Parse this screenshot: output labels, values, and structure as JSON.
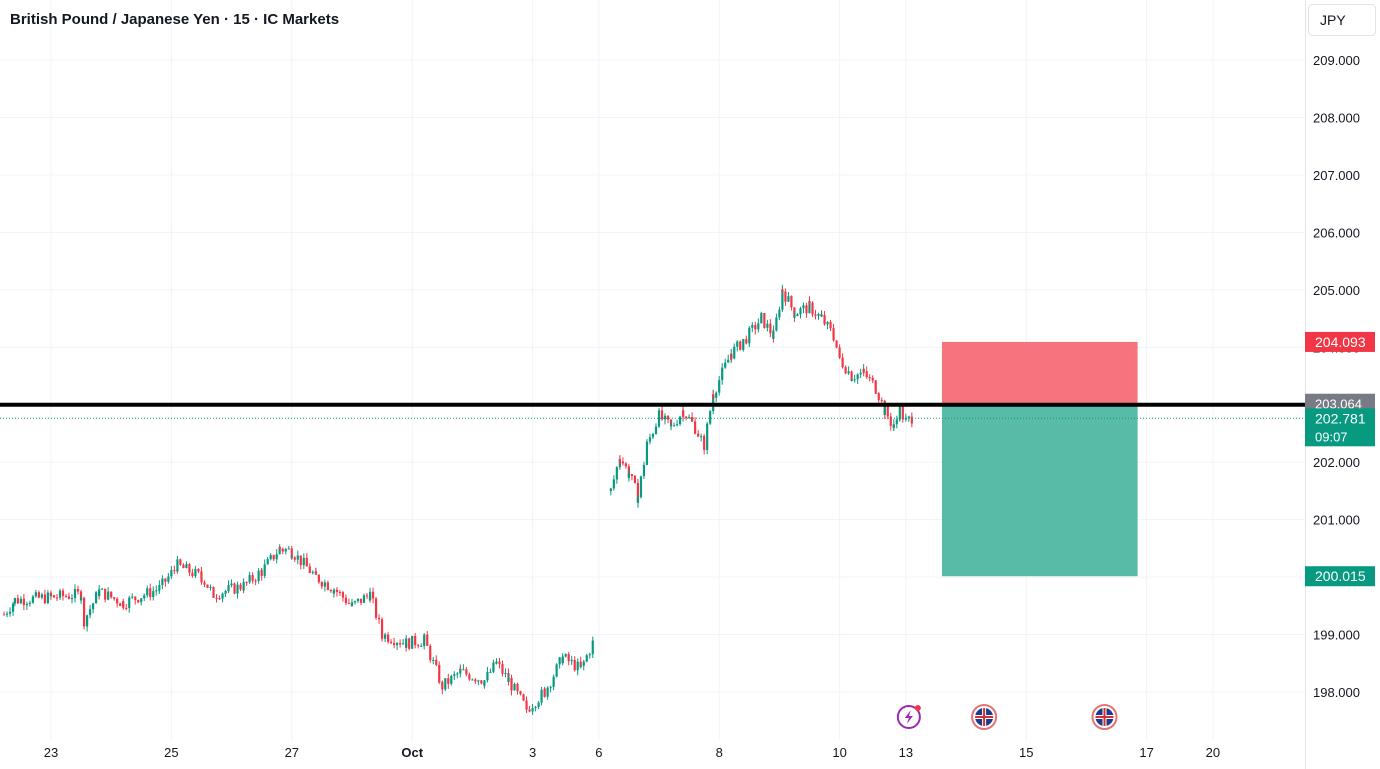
{
  "header": {
    "symbol_name": "British Pound / Japanese Yen",
    "interval": "15",
    "exchange": "IC Markets",
    "separator": "·"
  },
  "currency_button": "JPY",
  "chart_data": {
    "type": "candlestick",
    "title": "British Pound / Japanese Yen · 15 · IC Markets",
    "ylim": [
      197.5,
      209.75
    ],
    "y_ticks": [
      "198.000",
      "199.000",
      "200.000",
      "201.000",
      "202.000",
      "203.000",
      "204.000",
      "205.000",
      "206.000",
      "207.000",
      "208.000",
      "209.000"
    ],
    "x_ticks": [
      {
        "label": "23",
        "day": 0.0
      },
      {
        "label": "25",
        "day": 2.0
      },
      {
        "label": "27",
        "day": 4.0
      },
      {
        "label": "Oct",
        "day": 6.0,
        "bold": true
      },
      {
        "label": "3",
        "day": 8.0
      },
      {
        "label": "6",
        "day": 9.1
      },
      {
        "label": "8",
        "day": 11.1
      },
      {
        "label": "10",
        "day": 13.1
      },
      {
        "label": "13",
        "day": 14.2
      },
      {
        "label": "15",
        "day": 16.2
      },
      {
        "label": "17",
        "day": 18.2
      },
      {
        "label": "20",
        "day": 19.3
      }
    ],
    "xlim": [
      -0.78,
      19.9
    ],
    "price_path": [
      [
        -0.78,
        199.35
      ],
      [
        -0.6,
        199.6
      ],
      [
        0.0,
        199.65
      ],
      [
        0.5,
        199.7
      ],
      [
        0.55,
        199.25
      ],
      [
        0.8,
        199.75
      ],
      [
        1.2,
        199.55
      ],
      [
        1.8,
        199.8
      ],
      [
        2.1,
        200.2
      ],
      [
        2.5,
        200.0
      ],
      [
        2.7,
        199.7
      ],
      [
        3.2,
        199.85
      ],
      [
        3.5,
        200.1
      ],
      [
        3.8,
        200.5
      ],
      [
        4.0,
        200.45
      ],
      [
        4.4,
        200.0
      ],
      [
        4.7,
        199.8
      ],
      [
        5.0,
        199.5
      ],
      [
        5.3,
        199.7
      ],
      [
        5.5,
        199.0
      ],
      [
        5.9,
        198.85
      ],
      [
        6.2,
        198.9
      ],
      [
        6.5,
        198.1
      ],
      [
        6.8,
        198.35
      ],
      [
        7.2,
        198.2
      ],
      [
        7.4,
        198.5
      ],
      [
        7.6,
        198.2
      ],
      [
        7.9,
        197.7
      ],
      [
        8.2,
        198.0
      ],
      [
        8.5,
        198.6
      ],
      [
        8.8,
        198.4
      ],
      [
        9.0,
        198.85
      ],
      [
        9.1,
        200.3
      ],
      [
        9.3,
        201.5
      ],
      [
        9.45,
        202.1
      ],
      [
        9.6,
        201.8
      ],
      [
        9.75,
        201.4
      ],
      [
        9.9,
        202.3
      ],
      [
        10.1,
        202.8
      ],
      [
        10.3,
        202.6
      ],
      [
        10.5,
        202.9
      ],
      [
        10.7,
        202.6
      ],
      [
        10.85,
        202.3
      ],
      [
        11.0,
        203.2
      ],
      [
        11.3,
        203.9
      ],
      [
        11.5,
        204.1
      ],
      [
        11.8,
        204.5
      ],
      [
        12.0,
        204.2
      ],
      [
        12.15,
        205.0
      ],
      [
        12.35,
        204.6
      ],
      [
        12.6,
        204.7
      ],
      [
        12.8,
        204.5
      ],
      [
        13.0,
        204.2
      ],
      [
        13.1,
        203.8
      ],
      [
        13.3,
        203.5
      ],
      [
        13.5,
        203.55
      ],
      [
        13.7,
        203.3
      ],
      [
        13.85,
        202.9
      ],
      [
        14.0,
        202.6
      ],
      [
        14.1,
        202.9
      ],
      [
        14.2,
        202.7
      ],
      [
        14.3,
        202.78
      ]
    ],
    "levels": [
      {
        "name": "horizontal-line",
        "price": 203.0,
        "label": "203.064",
        "color": "#000000",
        "label_color": "#787b86"
      },
      {
        "name": "last-price",
        "price": 202.781,
        "label": "202.781",
        "countdown": "09:07",
        "color": "#089981"
      },
      {
        "name": "stop-loss",
        "price": 204.093,
        "label": "204.093",
        "color": "#f23645"
      },
      {
        "name": "take-profit",
        "price": 200.015,
        "label": "200.015",
        "color": "#089981"
      }
    ],
    "position": {
      "type": "short",
      "entry": 203.0,
      "stop": 204.093,
      "target": 200.015,
      "start_day": 14.8,
      "end_day": 18.05,
      "risk_color": "#f7737d",
      "reward_color": "#58bba8"
    },
    "events": [
      {
        "name": "earnings-icon",
        "day": 14.25
      },
      {
        "name": "uk-flag-icon",
        "day": 15.5
      },
      {
        "name": "uk-flag-icon",
        "day": 17.5
      }
    ],
    "colors": {
      "up": "#089981",
      "down": "#f23645",
      "grid": "#f0f3fa",
      "axis_text": "#131722"
    }
  }
}
